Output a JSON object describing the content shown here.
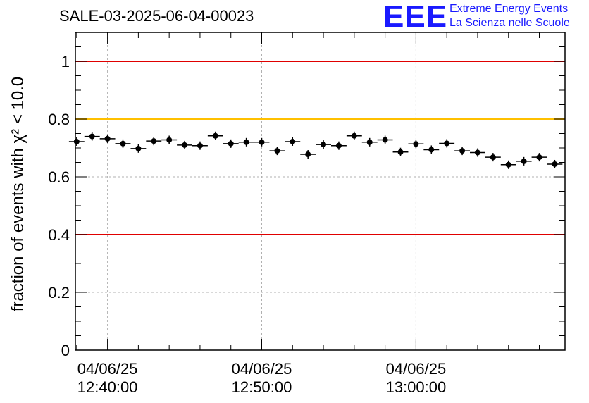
{
  "title": "SALE-03-2025-06-04-00023",
  "logo": {
    "mark": "EEE",
    "line1": "Extreme Energy Events",
    "line2": "La Scienza nelle Scuole",
    "color": "#1a1aff"
  },
  "chart_data": {
    "type": "scatter",
    "title": "SALE-03-2025-06-04-00023",
    "ylabel": "fraction of events with χ² < 10.0",
    "xlabel": "",
    "ylim": [
      0,
      1.1
    ],
    "xlim": [
      "12:37:55",
      "13:09:40"
    ],
    "x_ticks": [
      {
        "date": "04/06/25",
        "time": "12:40:00"
      },
      {
        "date": "04/06/25",
        "time": "12:50:00"
      },
      {
        "date": "04/06/25",
        "time": "13:00:00"
      }
    ],
    "y_ticks": [
      "0",
      "0.2",
      "0.4",
      "0.6",
      "0.8",
      "1"
    ],
    "grid": true,
    "reference_lines": [
      {
        "y": 1.0,
        "color": "#e00000"
      },
      {
        "y": 0.8,
        "color": "#ffc000"
      },
      {
        "y": 0.4,
        "color": "#e00000"
      }
    ],
    "bin_width_minutes": 1,
    "series": [
      {
        "color": "#000000",
        "x": [
          "12:38:00",
          "12:39:00",
          "12:40:00",
          "12:41:00",
          "12:42:00",
          "12:43:00",
          "12:44:00",
          "12:45:00",
          "12:46:00",
          "12:47:00",
          "12:48:00",
          "12:49:00",
          "12:50:00",
          "12:51:00",
          "12:52:00",
          "12:53:00",
          "12:54:00",
          "12:55:00",
          "12:56:00",
          "12:57:00",
          "12:58:00",
          "12:59:00",
          "13:00:00",
          "13:01:00",
          "13:02:00",
          "13:03:00",
          "13:04:00",
          "13:05:00",
          "13:06:00",
          "13:07:00",
          "13:08:00",
          "13:09:00"
        ],
        "y": [
          0.722,
          0.74,
          0.732,
          0.715,
          0.698,
          0.724,
          0.728,
          0.71,
          0.708,
          0.742,
          0.715,
          0.72,
          0.72,
          0.69,
          0.722,
          0.678,
          0.712,
          0.708,
          0.742,
          0.72,
          0.728,
          0.686,
          0.714,
          0.694,
          0.716,
          0.69,
          0.684,
          0.668,
          0.642,
          0.654,
          0.668,
          0.644
        ]
      }
    ]
  }
}
